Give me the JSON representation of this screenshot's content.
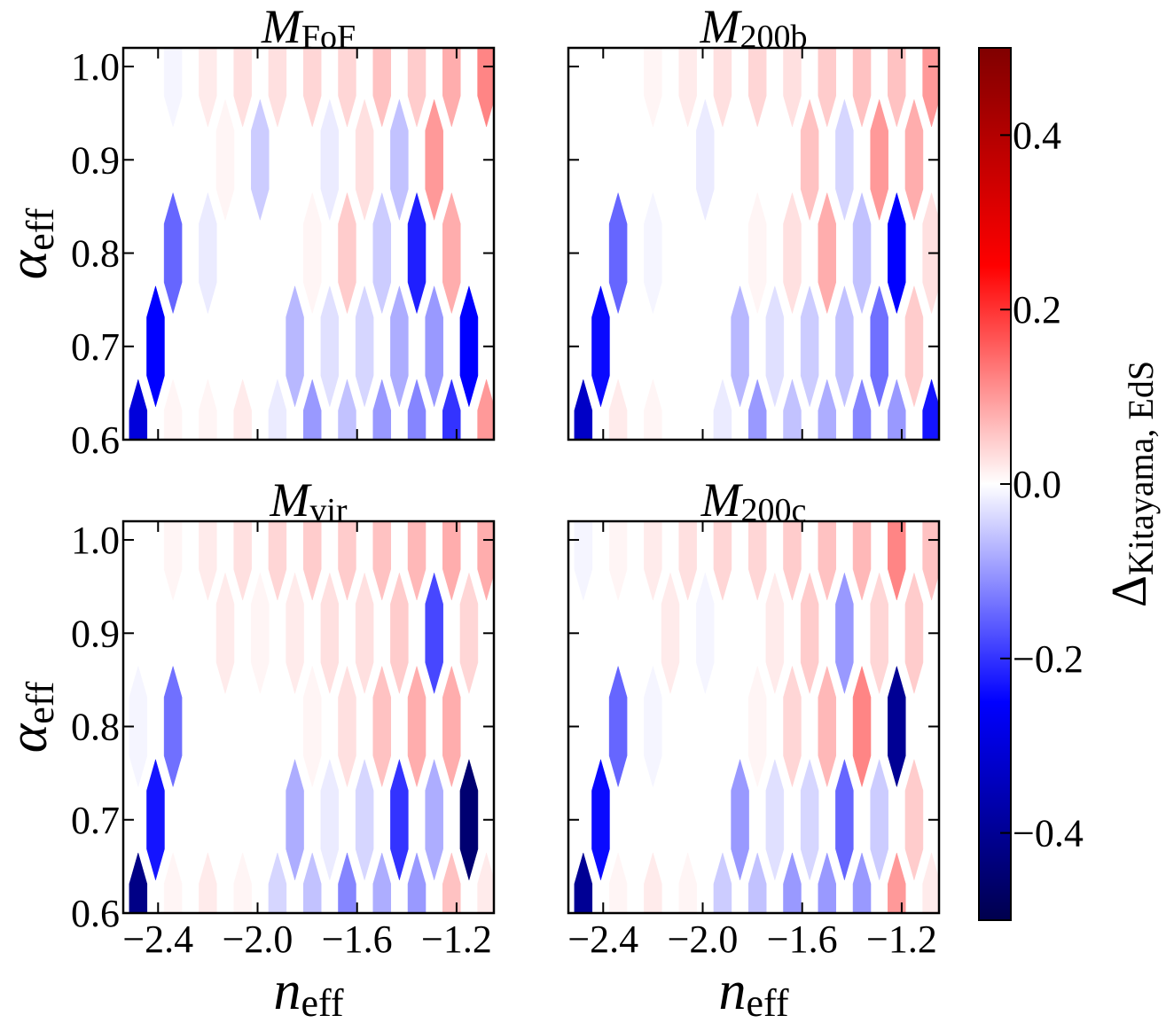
{
  "chart_data": [
    {
      "type": "hexbin",
      "title": [
        "M",
        "FoF"
      ],
      "x": [
        -2.48,
        -2.48,
        -2.48,
        -2.41,
        -2.41,
        -2.34,
        -2.34,
        -2.34,
        -2.27,
        -2.27,
        -2.2,
        -2.2,
        -2.2,
        -2.13,
        -2.13,
        -2.06,
        -2.06,
        -2.06,
        -1.99,
        -1.99,
        -1.92,
        -1.92,
        -1.92,
        -1.85,
        -1.85,
        -1.78,
        -1.78,
        -1.78,
        -1.71,
        -1.71,
        -1.64,
        -1.64,
        -1.64,
        -1.57,
        -1.57,
        -1.5,
        -1.5,
        -1.5,
        -1.43,
        -1.43,
        -1.36,
        -1.36,
        -1.36,
        -1.29,
        -1.29,
        -1.22,
        -1.22,
        -1.22,
        -1.15,
        -1.15,
        -1.08,
        -1.08,
        -1.08
      ],
      "y": [
        0.6,
        0.8,
        1.0,
        0.7,
        0.9,
        0.6,
        0.8,
        1.0,
        0.7,
        0.9,
        0.6,
        0.8,
        1.0,
        0.7,
        0.9,
        0.6,
        0.8,
        1.0,
        0.7,
        0.9,
        0.6,
        0.8,
        1.0,
        0.7,
        0.9,
        0.6,
        0.8,
        1.0,
        0.7,
        0.9,
        0.6,
        0.8,
        1.0,
        0.7,
        0.9,
        0.6,
        0.8,
        1.0,
        0.7,
        0.9,
        0.6,
        0.8,
        1.0,
        0.7,
        0.9,
        0.6,
        0.8,
        1.0,
        0.7,
        0.9,
        0.6,
        0.8,
        1.0
      ],
      "values": [
        -0.3,
        0.0,
        0.0,
        -0.25,
        0.0,
        0.01,
        -0.15,
        -0.01,
        0.0,
        0.0,
        0.01,
        -0.02,
        0.02,
        0.0,
        0.01,
        0.02,
        0.0,
        0.03,
        0.0,
        -0.05,
        -0.02,
        0.0,
        0.03,
        -0.07,
        0.0,
        -0.1,
        0.01,
        0.04,
        -0.03,
        -0.02,
        -0.06,
        0.05,
        0.04,
        -0.04,
        0.03,
        -0.1,
        -0.05,
        0.06,
        -0.08,
        -0.06,
        -0.12,
        -0.22,
        0.05,
        -0.1,
        0.1,
        -0.2,
        0.08,
        0.08,
        -0.25,
        0.0,
        0.1,
        0.0,
        0.12
      ],
      "xlim": [
        -2.54,
        -1.05
      ],
      "ylim": [
        0.6,
        1.02
      ],
      "xticks": [
        {
          "value": -2.4,
          "label": "−2.4"
        },
        {
          "value": -2.0,
          "label": "−2.0"
        },
        {
          "value": -1.6,
          "label": "−1.6"
        },
        {
          "value": -1.2,
          "label": "−1.2"
        }
      ],
      "yticks": [
        0.6,
        0.7,
        0.8,
        0.9,
        {
          "value": 1.0,
          "label": "1.0"
        }
      ],
      "ylabel": [
        "α",
        "eff"
      ]
    },
    {
      "type": "hexbin",
      "title": [
        "M",
        "200b"
      ],
      "x": [
        -2.48,
        -2.48,
        -2.48,
        -2.41,
        -2.41,
        -2.34,
        -2.34,
        -2.34,
        -2.27,
        -2.27,
        -2.2,
        -2.2,
        -2.2,
        -2.13,
        -2.13,
        -2.06,
        -2.06,
        -2.06,
        -1.99,
        -1.99,
        -1.92,
        -1.92,
        -1.92,
        -1.85,
        -1.85,
        -1.78,
        -1.78,
        -1.78,
        -1.71,
        -1.71,
        -1.64,
        -1.64,
        -1.64,
        -1.57,
        -1.57,
        -1.5,
        -1.5,
        -1.5,
        -1.43,
        -1.43,
        -1.36,
        -1.36,
        -1.36,
        -1.29,
        -1.29,
        -1.22,
        -1.22,
        -1.22,
        -1.15,
        -1.15,
        -1.08,
        -1.08,
        -1.08
      ],
      "y": [
        0.6,
        0.8,
        1.0,
        0.7,
        0.9,
        0.6,
        0.8,
        1.0,
        0.7,
        0.9,
        0.6,
        0.8,
        1.0,
        0.7,
        0.9,
        0.6,
        0.8,
        1.0,
        0.7,
        0.9,
        0.6,
        0.8,
        1.0,
        0.7,
        0.9,
        0.6,
        0.8,
        1.0,
        0.7,
        0.9,
        0.6,
        0.8,
        1.0,
        0.7,
        0.9,
        0.6,
        0.8,
        1.0,
        0.7,
        0.9,
        0.6,
        0.8,
        1.0,
        0.7,
        0.9,
        0.6,
        0.8,
        1.0,
        0.7,
        0.9,
        0.6,
        0.8,
        1.0
      ],
      "values": [
        -0.33,
        0.0,
        0.0,
        -0.24,
        0.0,
        0.02,
        -0.15,
        0.0,
        0.0,
        0.0,
        0.01,
        -0.01,
        0.01,
        0.0,
        0.0,
        0.0,
        0.0,
        0.02,
        0.0,
        -0.02,
        -0.02,
        0.0,
        0.03,
        -0.07,
        0.0,
        -0.1,
        0.01,
        0.04,
        -0.03,
        0.0,
        -0.06,
        0.03,
        0.03,
        -0.05,
        0.06,
        -0.08,
        0.08,
        0.05,
        -0.06,
        -0.04,
        -0.12,
        -0.06,
        0.06,
        -0.14,
        0.1,
        -0.1,
        -0.25,
        0.06,
        0.05,
        0.08,
        -0.23,
        0.03,
        0.1
      ],
      "xlim": [
        -2.54,
        -1.05
      ],
      "ylim": [
        0.6,
        1.02
      ],
      "xticks": [
        {
          "value": -2.4,
          "label": "−2.4"
        },
        {
          "value": -2.0,
          "label": "−2.0"
        },
        {
          "value": -1.6,
          "label": "−1.6"
        },
        {
          "value": -1.2,
          "label": "−1.2"
        }
      ],
      "yticks": [
        0.6,
        0.7,
        0.8,
        0.9,
        {
          "value": 1.0,
          "label": "1.0"
        }
      ]
    },
    {
      "type": "hexbin",
      "title": [
        "M",
        "vir"
      ],
      "x": [
        -2.48,
        -2.48,
        -2.48,
        -2.41,
        -2.41,
        -2.34,
        -2.34,
        -2.34,
        -2.27,
        -2.27,
        -2.2,
        -2.2,
        -2.2,
        -2.13,
        -2.13,
        -2.06,
        -2.06,
        -2.06,
        -1.99,
        -1.99,
        -1.92,
        -1.92,
        -1.92,
        -1.85,
        -1.85,
        -1.78,
        -1.78,
        -1.78,
        -1.71,
        -1.71,
        -1.64,
        -1.64,
        -1.64,
        -1.57,
        -1.57,
        -1.5,
        -1.5,
        -1.5,
        -1.43,
        -1.43,
        -1.36,
        -1.36,
        -1.36,
        -1.29,
        -1.29,
        -1.22,
        -1.22,
        -1.22,
        -1.15,
        -1.15,
        -1.08,
        -1.08,
        -1.08
      ],
      "y": [
        0.6,
        0.8,
        1.0,
        0.7,
        0.9,
        0.6,
        0.8,
        1.0,
        0.7,
        0.9,
        0.6,
        0.8,
        1.0,
        0.7,
        0.9,
        0.6,
        0.8,
        1.0,
        0.7,
        0.9,
        0.6,
        0.8,
        1.0,
        0.7,
        0.9,
        0.6,
        0.8,
        1.0,
        0.7,
        0.9,
        0.6,
        0.8,
        1.0,
        0.7,
        0.9,
        0.6,
        0.8,
        1.0,
        0.7,
        0.9,
        0.6,
        0.8,
        1.0,
        0.7,
        0.9,
        0.6,
        0.8,
        1.0,
        0.7,
        0.9,
        0.6,
        0.8,
        1.0
      ],
      "values": [
        -0.42,
        -0.01,
        0.0,
        -0.23,
        0.0,
        0.01,
        -0.14,
        0.01,
        0.0,
        0.0,
        0.02,
        0.0,
        0.02,
        0.0,
        0.02,
        0.01,
        0.0,
        0.03,
        0.0,
        0.01,
        -0.04,
        0.0,
        0.04,
        -0.08,
        0.02,
        -0.06,
        0.01,
        0.05,
        -0.02,
        0.03,
        -0.12,
        0.03,
        0.05,
        -0.04,
        0.03,
        -0.08,
        0.06,
        0.06,
        -0.2,
        0.05,
        -0.1,
        0.08,
        0.07,
        -0.08,
        -0.18,
        0.06,
        0.08,
        0.08,
        -0.45,
        0.04,
        0.02,
        0.0,
        0.08
      ],
      "xlim": [
        -2.54,
        -1.05
      ],
      "ylim": [
        0.6,
        1.02
      ],
      "xticks": [
        {
          "value": -2.4,
          "label": "−2.4"
        },
        {
          "value": -2.0,
          "label": "−2.0"
        },
        {
          "value": -1.6,
          "label": "−1.6"
        },
        {
          "value": -1.2,
          "label": "−1.2"
        }
      ],
      "yticks": [
        0.6,
        0.7,
        0.8,
        0.9,
        {
          "value": 1.0,
          "label": "1.0"
        }
      ],
      "xlabel": [
        "n",
        "eff"
      ],
      "ylabel": [
        "α",
        "eff"
      ]
    },
    {
      "type": "hexbin",
      "title": [
        "M",
        "200c"
      ],
      "x": [
        -2.48,
        -2.48,
        -2.48,
        -2.41,
        -2.41,
        -2.34,
        -2.34,
        -2.34,
        -2.27,
        -2.27,
        -2.2,
        -2.2,
        -2.2,
        -2.13,
        -2.13,
        -2.06,
        -2.06,
        -2.06,
        -1.99,
        -1.99,
        -1.92,
        -1.92,
        -1.92,
        -1.85,
        -1.85,
        -1.78,
        -1.78,
        -1.78,
        -1.71,
        -1.71,
        -1.64,
        -1.64,
        -1.64,
        -1.57,
        -1.57,
        -1.5,
        -1.5,
        -1.5,
        -1.43,
        -1.43,
        -1.36,
        -1.36,
        -1.36,
        -1.29,
        -1.29,
        -1.22,
        -1.22,
        -1.22,
        -1.15,
        -1.15,
        -1.08,
        -1.08,
        -1.08
      ],
      "y": [
        0.6,
        0.8,
        1.0,
        0.7,
        0.9,
        0.6,
        0.8,
        1.0,
        0.7,
        0.9,
        0.6,
        0.8,
        1.0,
        0.7,
        0.9,
        0.6,
        0.8,
        1.0,
        0.7,
        0.9,
        0.6,
        0.8,
        1.0,
        0.7,
        0.9,
        0.6,
        0.8,
        1.0,
        0.7,
        0.9,
        0.6,
        0.8,
        1.0,
        0.7,
        0.9,
        0.6,
        0.8,
        1.0,
        0.7,
        0.9,
        0.6,
        0.8,
        1.0,
        0.7,
        0.9,
        0.6,
        0.8,
        1.0,
        0.7,
        0.9,
        0.6,
        0.8,
        1.0
      ],
      "values": [
        -0.4,
        0.0,
        -0.01,
        -0.24,
        0.0,
        0.01,
        -0.15,
        0.01,
        0.0,
        0.0,
        0.02,
        -0.01,
        0.02,
        0.0,
        0.02,
        0.01,
        0.0,
        0.03,
        0.0,
        -0.01,
        -0.05,
        0.0,
        0.04,
        -0.1,
        0.0,
        -0.06,
        0.01,
        0.04,
        -0.03,
        0.02,
        -0.1,
        0.04,
        0.05,
        -0.04,
        0.05,
        -0.1,
        0.07,
        0.06,
        -0.15,
        -0.1,
        -0.1,
        0.12,
        0.07,
        -0.05,
        0.04,
        0.1,
        -0.4,
        0.12,
        0.05,
        0.05,
        0.02,
        0.0,
        0.06
      ],
      "xlim": [
        -2.54,
        -1.05
      ],
      "ylim": [
        0.6,
        1.02
      ],
      "xticks": [
        {
          "value": -2.4,
          "label": "−2.4"
        },
        {
          "value": -2.0,
          "label": "−2.0"
        },
        {
          "value": -1.6,
          "label": "−1.6"
        },
        {
          "value": -1.2,
          "label": "−1.2"
        }
      ],
      "yticks": [
        0.6,
        0.7,
        0.8,
        0.9,
        {
          "value": 1.0,
          "label": "1.0"
        }
      ],
      "xlabel": [
        "n",
        "eff"
      ]
    }
  ],
  "colorbar": {
    "label": [
      "Δ",
      "Kitayama, EdS"
    ],
    "lim": [
      -0.5,
      0.5
    ],
    "colormap": "seismic",
    "ticks": [
      {
        "value": -0.4,
        "label": "−0.4"
      },
      {
        "value": -0.2,
        "label": "−0.2"
      },
      {
        "value": 0.0,
        "label": "0.0"
      },
      0.2,
      0.4
    ]
  }
}
